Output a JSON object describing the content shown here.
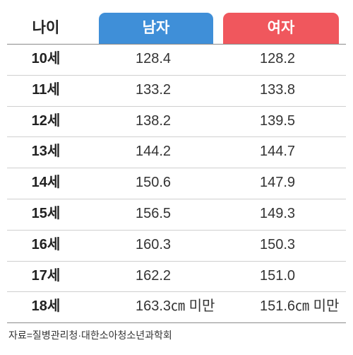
{
  "table": {
    "header": [
      "나이",
      "남자",
      "여자"
    ],
    "rows": [
      [
        "10세",
        "128.4",
        "128.2"
      ],
      [
        "11세",
        "133.2",
        "133.8"
      ],
      [
        "12세",
        "138.2",
        "139.5"
      ],
      [
        "13세",
        "144.2",
        "144.7"
      ],
      [
        "14세",
        "150.6",
        "147.9"
      ],
      [
        "15세",
        "156.5",
        "149.3"
      ],
      [
        "16세",
        "160.3",
        "150.3"
      ],
      [
        "17세",
        "162.2",
        "151.0"
      ],
      [
        "18세",
        "163.3㎝ 미만",
        "151.6㎝ 미만"
      ]
    ]
  },
  "source": "자료=질병관리청·대한소아청소년과학회"
}
